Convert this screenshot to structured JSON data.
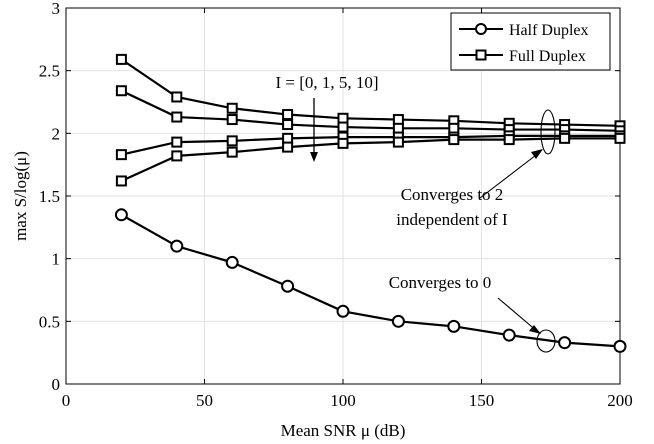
{
  "chart_data": {
    "type": "line",
    "xlabel": "Mean SNR μ (dB)",
    "ylabel": "max S/log(μ)",
    "xlim": [
      0,
      200
    ],
    "ylim": [
      0,
      3
    ],
    "xticks": [
      0,
      50,
      100,
      150,
      200
    ],
    "yticks": [
      0,
      0.5,
      1,
      1.5,
      2,
      2.5,
      3
    ],
    "xtick_labels": [
      "0",
      "50",
      "100",
      "150",
      "200"
    ],
    "ytick_labels": [
      "0",
      "0.5",
      "1",
      "1.5",
      "2",
      "2.5",
      "3"
    ],
    "grid": true,
    "legend_position": "top-right",
    "legend": [
      {
        "label": "Half Duplex",
        "marker": "circle"
      },
      {
        "label": "Full Duplex",
        "marker": "square"
      }
    ],
    "series": [
      {
        "marker": "circle",
        "legend": "Half Duplex",
        "x": [
          20,
          40,
          60,
          80,
          100,
          120,
          140,
          160,
          180,
          200
        ],
        "y": [
          1.35,
          1.1,
          0.97,
          0.78,
          0.58,
          0.5,
          0.46,
          0.39,
          0.33,
          0.3
        ]
      },
      {
        "marker": "square",
        "legend": "Full Duplex",
        "x": [
          20,
          40,
          60,
          80,
          100,
          120,
          140,
          160,
          180,
          200
        ],
        "y": [
          2.59,
          2.29,
          2.2,
          2.15,
          2.12,
          2.11,
          2.1,
          2.08,
          2.07,
          2.06
        ]
      },
      {
        "marker": "square",
        "x": [
          20,
          40,
          60,
          80,
          100,
          120,
          140,
          160,
          180,
          200
        ],
        "y": [
          2.34,
          2.13,
          2.11,
          2.07,
          2.05,
          2.04,
          2.04,
          2.03,
          2.03,
          2.02
        ]
      },
      {
        "marker": "square",
        "x": [
          20,
          40,
          60,
          80,
          100,
          120,
          140,
          160,
          180,
          200
        ],
        "y": [
          1.83,
          1.93,
          1.94,
          1.96,
          1.97,
          1.97,
          1.97,
          1.98,
          1.98,
          1.98
        ]
      },
      {
        "marker": "square",
        "x": [
          20,
          40,
          60,
          80,
          100,
          120,
          140,
          160,
          180,
          200
        ],
        "y": [
          1.62,
          1.82,
          1.85,
          1.89,
          1.92,
          1.93,
          1.95,
          1.95,
          1.96,
          1.96
        ]
      }
    ],
    "annotations": [
      {
        "text": "I = [0, 1, 5, 10]"
      },
      {
        "text": "Converges to 2"
      },
      {
        "text": "independent of I"
      },
      {
        "text": "Converges to 0"
      }
    ]
  }
}
